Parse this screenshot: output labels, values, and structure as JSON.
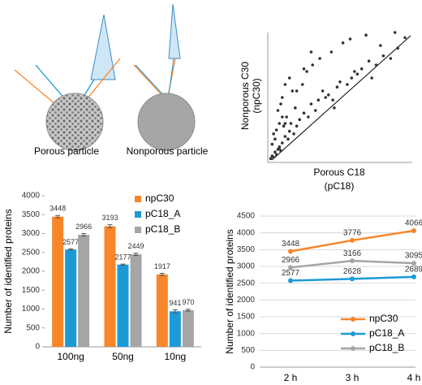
{
  "diagram": {
    "labels": [
      "Porous particle",
      "Nonporous particle"
    ]
  },
  "chart_data": [
    {
      "type": "scatter",
      "xlabel": [
        "Porous C18",
        "(pC18)"
      ],
      "ylabel": [
        "Nonporous C30",
        "(npC30)"
      ],
      "xlim": [
        0,
        100
      ],
      "ylim": [
        0,
        100
      ],
      "color": "#333333",
      "x": [
        2,
        3,
        4,
        5,
        6,
        7,
        8,
        3,
        5,
        9,
        10,
        12,
        4,
        6,
        8,
        11,
        14,
        15,
        13,
        16,
        18,
        7,
        9,
        20,
        22,
        10,
        12,
        25,
        28,
        17,
        19,
        30,
        33,
        24,
        35,
        38,
        40,
        27,
        42,
        45,
        48,
        50,
        31,
        55,
        58,
        60,
        36,
        62,
        65,
        70,
        72,
        44,
        75,
        80,
        52,
        85,
        90,
        57,
        95,
        15,
        20,
        10,
        25,
        12,
        30,
        68,
        78,
        88,
        46,
        8
      ],
      "y": [
        3,
        5,
        4,
        8,
        6,
        10,
        12,
        14,
        18,
        9,
        15,
        20,
        22,
        25,
        11,
        28,
        18,
        24,
        35,
        30,
        22,
        40,
        45,
        28,
        33,
        50,
        30,
        38,
        35,
        55,
        42,
        45,
        40,
        60,
        48,
        55,
        50,
        70,
        52,
        48,
        58,
        62,
        75,
        60,
        65,
        70,
        80,
        68,
        72,
        78,
        65,
        85,
        75,
        82,
        92,
        80,
        88,
        95,
        96,
        65,
        55,
        35,
        72,
        60,
        85,
        98,
        90,
        100,
        42,
        30
      ]
    },
    {
      "type": "bar",
      "ylabel": "Number of identified proteins",
      "categories": [
        "100ng",
        "50ng",
        "10ng"
      ],
      "ylim": [
        0,
        4000
      ],
      "yticks": [
        0,
        500,
        1000,
        1500,
        2000,
        2500,
        3000,
        3500,
        4000
      ],
      "legend": "upper right",
      "series": [
        {
          "name": "npC30",
          "color": "#f7862b",
          "values": [
            3448,
            3193,
            1917
          ],
          "errors": [
            30,
            40,
            30
          ]
        },
        {
          "name": "pC18_A",
          "color": "#1c9ad6",
          "values": [
            2577,
            2177,
            941
          ],
          "errors": [
            15,
            15,
            40
          ]
        },
        {
          "name": "pC18_B",
          "color": "#a5a5a5",
          "values": [
            2966,
            2449,
            970
          ],
          "errors": [
            35,
            30,
            25
          ]
        }
      ]
    },
    {
      "type": "line",
      "ylabel": "Number of identified proteins",
      "categories": [
        "2 h",
        "3 h",
        "4 h"
      ],
      "ylim": [
        0,
        4500
      ],
      "yticks": [
        0,
        500,
        1000,
        1500,
        2000,
        2500,
        3000,
        3500,
        4000,
        4500
      ],
      "grid": true,
      "legend": "lower right",
      "series": [
        {
          "name": "npC30",
          "color": "#f7862b",
          "values": [
            3448,
            3776,
            4066
          ]
        },
        {
          "name": "pC18_A",
          "color": "#1c9ad6",
          "values": [
            2577,
            2628,
            2689
          ]
        },
        {
          "name": "pC18_B",
          "color": "#a5a5a5",
          "values": [
            2966,
            3166,
            3095
          ]
        }
      ]
    }
  ]
}
